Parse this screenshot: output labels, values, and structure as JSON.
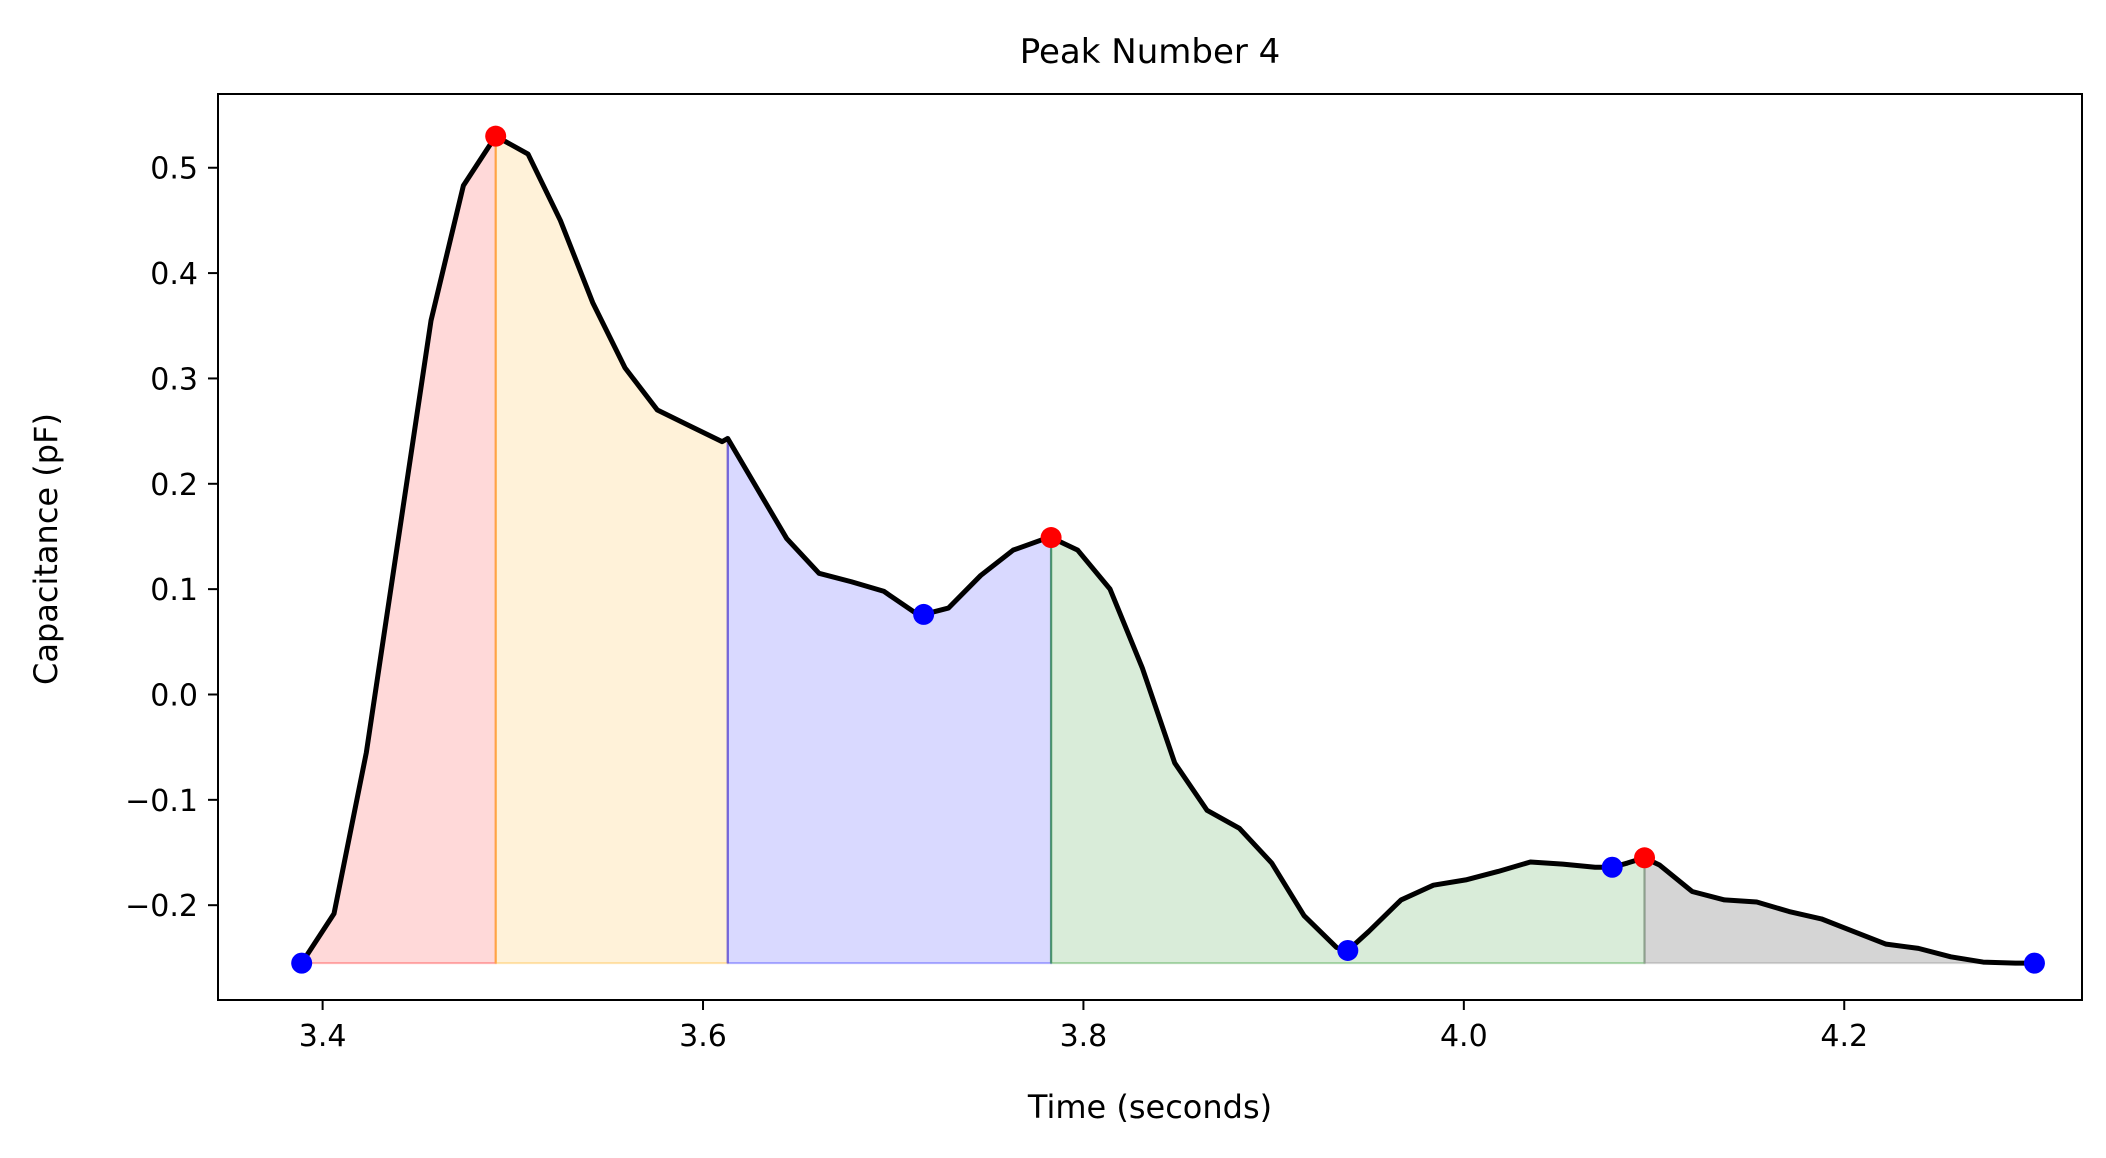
{
  "chart_data": {
    "type": "area",
    "title": "Peak Number 4",
    "xlabel": "Time (seconds)",
    "ylabel": "Capacitance (pF)",
    "xlim": [
      3.345,
      4.325
    ],
    "ylim": [
      -0.29,
      0.57
    ],
    "xticks": [
      3.4,
      3.6,
      3.8,
      4.0,
      4.2
    ],
    "xtick_labels": [
      "3.4",
      "3.6",
      "3.8",
      "4.0",
      "4.2"
    ],
    "yticks": [
      -0.2,
      -0.1,
      0.0,
      0.1,
      0.2,
      0.3,
      0.4,
      0.5
    ],
    "ytick_labels": [
      "−0.2",
      "−0.1",
      "0.0",
      "0.1",
      "0.2",
      "0.3",
      "0.4",
      "0.5"
    ],
    "grid": false,
    "baseline": -0.255,
    "line": {
      "color": "#000000",
      "x": [
        3.389,
        3.406,
        3.423,
        3.44,
        3.457,
        3.474,
        3.491,
        3.508,
        3.525,
        3.542,
        3.559,
        3.576,
        3.593,
        3.61,
        3.613,
        3.627,
        3.644,
        3.661,
        3.678,
        3.695,
        3.712,
        3.716,
        3.729,
        3.746,
        3.763,
        3.78,
        3.783,
        3.797,
        3.814,
        3.831,
        3.848,
        3.865,
        3.882,
        3.899,
        3.916,
        3.933,
        3.939,
        3.95,
        3.967,
        3.984,
        4.001,
        4.018,
        4.035,
        4.052,
        4.069,
        4.078,
        4.086,
        4.095,
        4.103,
        4.12,
        4.137,
        4.154,
        4.171,
        4.188,
        4.205,
        4.222,
        4.239,
        4.256,
        4.273,
        4.29,
        4.3
      ],
      "y": [
        -0.255,
        -0.208,
        -0.055,
        0.15,
        0.355,
        0.483,
        0.53,
        0.513,
        0.45,
        0.372,
        0.31,
        0.27,
        0.255,
        0.24,
        0.243,
        0.2,
        0.148,
        0.115,
        0.107,
        0.098,
        0.077,
        0.076,
        0.082,
        0.113,
        0.137,
        0.148,
        0.149,
        0.137,
        0.1,
        0.025,
        -0.065,
        -0.11,
        -0.127,
        -0.16,
        -0.21,
        -0.24,
        -0.243,
        -0.225,
        -0.195,
        -0.181,
        -0.176,
        -0.168,
        -0.159,
        -0.161,
        -0.164,
        -0.164,
        -0.16,
        -0.155,
        -0.162,
        -0.187,
        -0.195,
        -0.197,
        -0.206,
        -0.213,
        -0.225,
        -0.237,
        -0.241,
        -0.249,
        -0.254,
        -0.255,
        -0.255
      ]
    },
    "regions": [
      {
        "x_start": 3.389,
        "x_end": 3.491,
        "color": "#ff0000",
        "opacity": 0.15
      },
      {
        "x_start": 3.491,
        "x_end": 3.613,
        "color": "#ffa500",
        "opacity": 0.15
      },
      {
        "x_start": 3.613,
        "x_end": 3.783,
        "color": "#0000ff",
        "opacity": 0.15
      },
      {
        "x_start": 3.783,
        "x_end": 4.095,
        "color": "#008000",
        "opacity": 0.15
      },
      {
        "x_start": 4.095,
        "x_end": 4.3,
        "color": "#808080",
        "opacity": 0.33
      }
    ],
    "peaks": {
      "color": "#ff0000",
      "points": [
        [
          3.491,
          0.53
        ],
        [
          3.783,
          0.149
        ],
        [
          4.095,
          -0.155
        ]
      ]
    },
    "boundaries": {
      "color": "#0000ff",
      "points": [
        [
          3.389,
          -0.255
        ],
        [
          3.716,
          0.076
        ],
        [
          3.939,
          -0.243
        ],
        [
          4.078,
          -0.164
        ],
        [
          4.3,
          -0.255
        ]
      ]
    }
  }
}
